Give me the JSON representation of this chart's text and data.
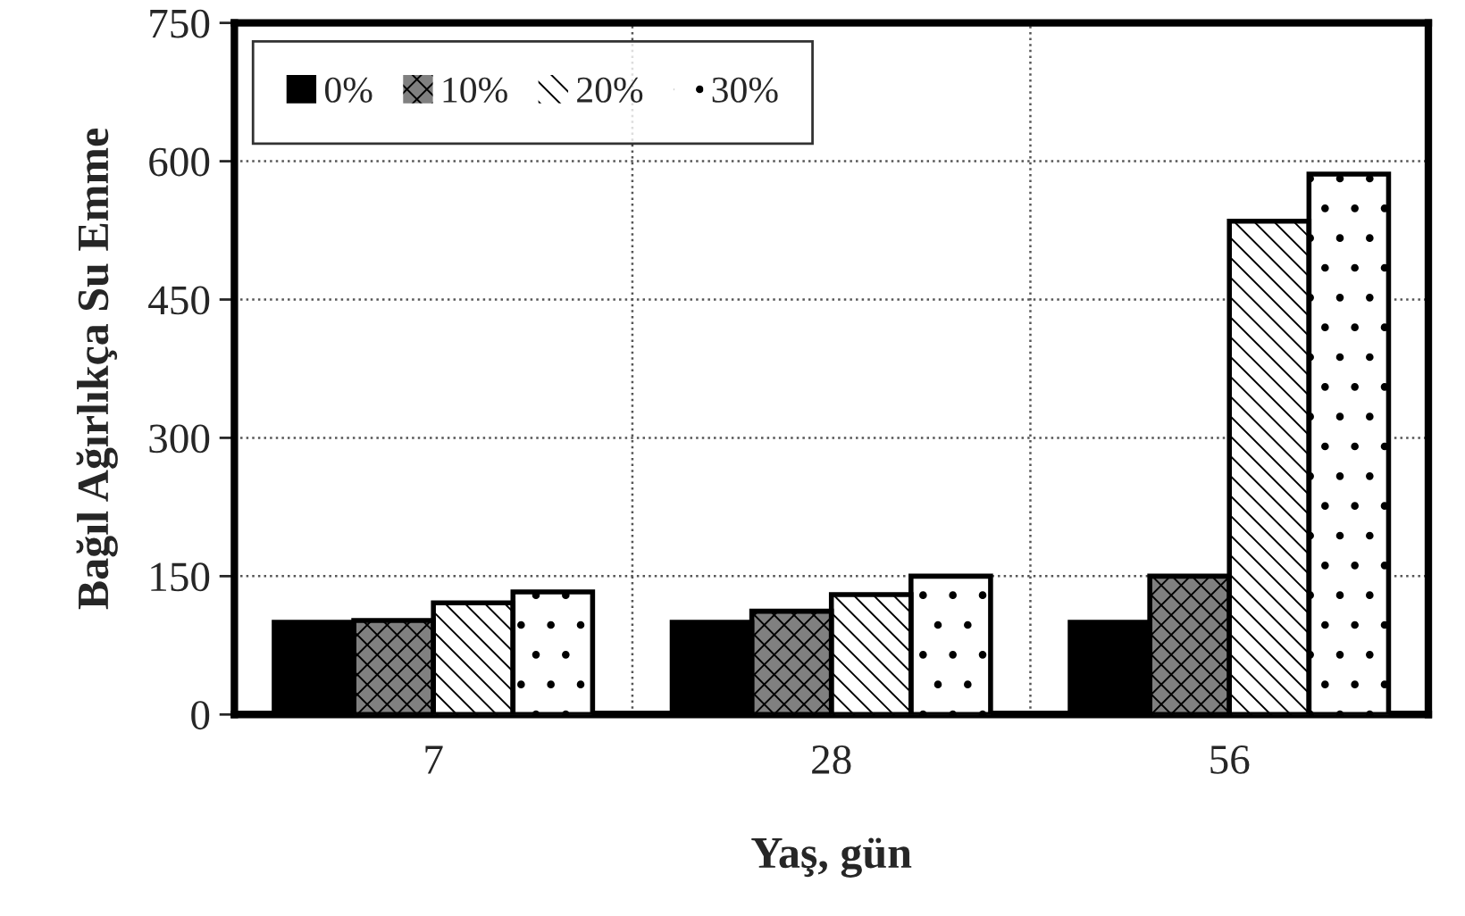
{
  "chart_data": {
    "type": "bar",
    "xlabel": "Yaş, gün",
    "ylabel": "Bağıl Ağırlıkça Su Emme",
    "categories": [
      "7",
      "28",
      "56"
    ],
    "series": [
      {
        "name": "0%",
        "color": "#000000",
        "values": [
          100,
          100,
          100
        ]
      },
      {
        "name": "10%",
        "color": "#808080",
        "values": [
          102,
          112,
          150
        ]
      },
      {
        "name": "20%",
        "color": "#ffffff",
        "values": [
          121,
          130,
          535
        ]
      },
      {
        "name": "30%",
        "color": "#ffffff",
        "values": [
          133,
          150,
          586
        ]
      }
    ],
    "ylim": [
      0,
      750
    ],
    "yticks": [
      0,
      150,
      300,
      450,
      600,
      750
    ],
    "grid": true,
    "legend": "top left"
  }
}
